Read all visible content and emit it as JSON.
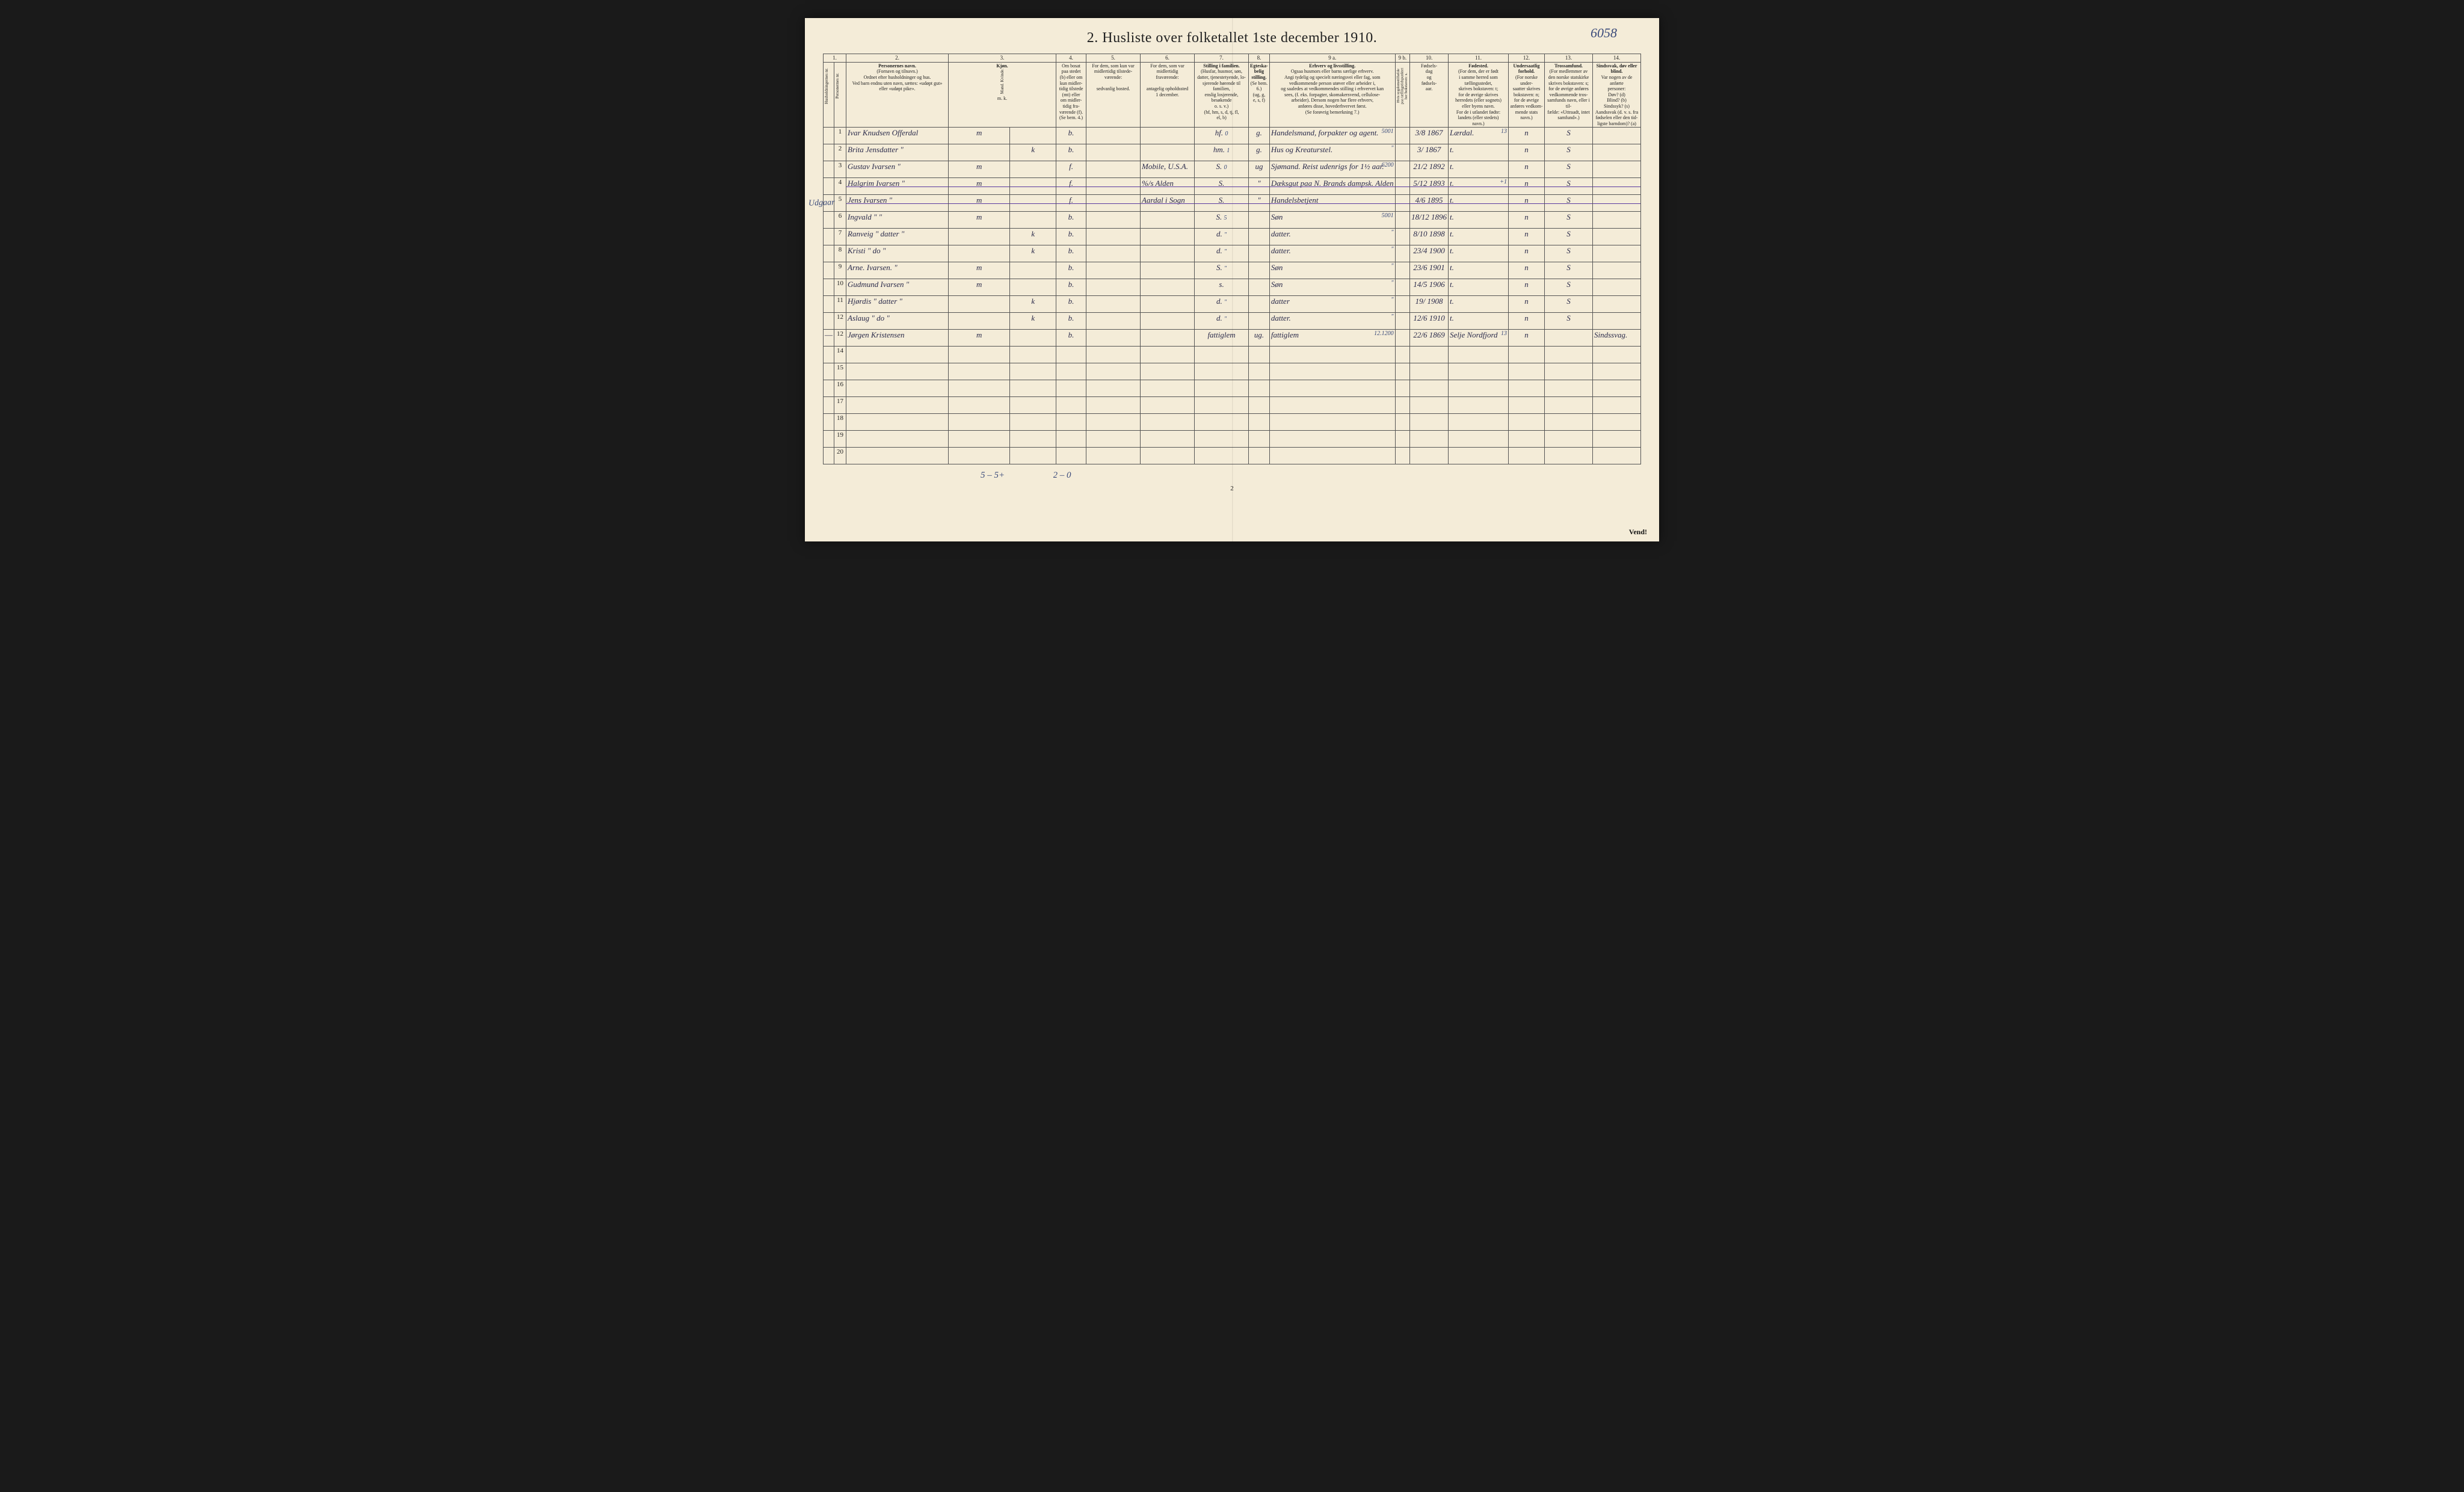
{
  "ref_number": "6058",
  "title": "2.  Husliste over folketallet 1ste december 1910.",
  "margin_note": "Udgaar",
  "page_number": "2",
  "vend": "Vend!",
  "footer": {
    "left_tally": "5 – 5+",
    "right_tally": "2 – 0"
  },
  "colnums": [
    "1.",
    "2.",
    "3.",
    "4.",
    "5.",
    "6.",
    "7.",
    "8.",
    "9 a.",
    "9 b.",
    "10.",
    "11.",
    "12.",
    "13.",
    "14."
  ],
  "headers": {
    "h1a": "Husholdningernes nr.",
    "h1b": "Personernes nr.",
    "h2_title": "Personernes navn.",
    "h2_sub": "(Fornavn og tilnavn.)\nOrdnet efter husholdninger og hus.\nVed barn endnu uten navn, sættes: «udøpt gut»\neller «udøpt pike».",
    "h3_title": "Kjøn.",
    "h3_sub": "Mand.  Kvinde.",
    "h3_mk": "m.    k.",
    "h4": "Om bosat\npaa stedet\n(b) eller om\nkun midler-\ntidig tilstede\n(mt) eller\nom midler-\ntidig fra-\nværende (f).\n(Se bem. 4.)",
    "h5": "For dem, som kun var\nmidlertidig tilstede-\nværende:\n\nsedvanlig bosted.",
    "h6": "For dem, som var\nmidlertidig\nfraværende:\n\nantagelig opholdssted\n1 december.",
    "h7_title": "Stilling i familien.",
    "h7_sub": "(Husfar, husmor, søn,\ndatter, tjenestetyende, lo-\nsjerende hørende til familien,\nenslig losjerende, besøkende\no. s. v.)\n(hf, hm, s, d, tj, fl,\nel, b)",
    "h8_title": "Egteska-\nbelig\nstilling.",
    "h8_sub": "(Se bem. 6.)\n(ug, g,\ne, s, f)",
    "h9a_title": "Erhverv og livsstilling.",
    "h9a_sub": "Ogsaa husmors eller barns særlige erhverv.\nAngi tydelig og specielt næringsvei eller fag, som\nvedkommende person utøver eller arbeider i,\nog saaledes at vedkommendes stilling i erhvervet kan\nsees, (f. eks. forpagter, skomakersvend, cellulose-\narbeider). Dersom nogen har flere erhverv,\nanføres disse, hovederhvervet først.\n(Se forøvrig bemerkning 7.)",
    "h9b": "Hvis sygdomstilfælde\npaa tællingstidspunktet\nher bokstaven: s.",
    "h10": "Fødsels-\ndag\nog\nfødsels-\naar.",
    "h11_title": "Fødested.",
    "h11_sub": "(For dem, der er født\ni samme herred som\ntællingsstedet,\nskrives bokstaven: t;\nfor de øvrige skrives\nherredets (eller sognets)\neller byens navn.\nFor de i utlandet fødte:\nlandets (eller stedets)\nnavn.)",
    "h12_title": "Undersaatlig\nforhold.",
    "h12_sub": "(For norske under-\nsaatter skrives\nbokstaven: n;\nfor de øvrige\nanføres vedkom-\nmende stats navn.)",
    "h13_title": "Trossamfund.",
    "h13_sub": "(For medlemmer av\nden norske statskirke\nskrives bokstaven: s;\nfor de øvrige anføres\nvedkommende tros-\nsamfunds navn, eller i til-\nfælde: «Uttraadt, intet\nsamfund».)",
    "h14_title": "Sindssvak, døv\neller blind.",
    "h14_sub": "Var nogen av de anførte\npersoner:\nDøv?     (d)\nBlind?    (b)\nSindssyk?  (s)\nAandssvak (d. v. s. fra\nfødselen eller den tid-\nligste barndom)?  (a)"
  },
  "rows": [
    {
      "n": "1",
      "name": "Ivar Knudsen Offerdal",
      "m": "m",
      "k": "",
      "bosat": "b.",
      "tilst": "",
      "frav": "",
      "fam": "hf.",
      "famnote": "0",
      "egte": "g.",
      "erhverv": "Handelsmand, forpakter og agent.",
      "erhnote": "5001",
      "fb": "3/8 1867",
      "fodested": "Lærdal.",
      "fonote": "13",
      "under": "n",
      "tros": "S",
      "sind": ""
    },
    {
      "n": "2",
      "name": "Brita Jensdatter   \"",
      "m": "",
      "k": "k",
      "bosat": "b.",
      "tilst": "",
      "frav": "",
      "fam": "hm.",
      "famnote": "1",
      "egte": "g.",
      "erhverv": "Hus og Kreaturstel.",
      "erhnote": "\"",
      "fb": "3/ 1867",
      "fodested": "t.",
      "fonote": "",
      "under": "n",
      "tros": "S",
      "sind": ""
    },
    {
      "n": "3",
      "name": "Gustav Ivarsen    \"",
      "m": "m",
      "k": "",
      "bosat": "f.",
      "tilst": "",
      "frav": "Mobile, U.S.A.",
      "fam": "S.",
      "famnote": "0",
      "egte": "ug",
      "erhverv": "Sjømand. Reist udenrigs for 1½ aar.",
      "erhnote": "6200",
      "fb": "21/2 1892",
      "fodested": "t.",
      "fonote": "",
      "under": "n",
      "tros": "S",
      "sind": ""
    },
    {
      "n": "4",
      "name": "Halgrim Ivarsen   \"",
      "m": "m",
      "k": "",
      "bosat": "f.",
      "tilst": "",
      "frav": "%/s Alden",
      "fam": "S.",
      "famnote": "",
      "egte": "\"",
      "erhverv": "Dæksgut paa N. Brands dampsk. Alden",
      "erhnote": "",
      "fb": "5/12 1893",
      "fodested": "t.",
      "fonote": "+1",
      "under": "n",
      "tros": "S",
      "sind": "",
      "struck": true
    },
    {
      "n": "5",
      "name": "Jens Ivarsen      \"",
      "m": "m",
      "k": "",
      "bosat": "f.",
      "tilst": "",
      "frav": "Aardal i Sogn",
      "fam": "S.",
      "famnote": "",
      "egte": "\"",
      "erhverv": "Handelsbetjent",
      "erhnote": "",
      "fb": "4/6 1895",
      "fodested": "t.",
      "fonote": "",
      "under": "n",
      "tros": "S",
      "sind": "",
      "struck": true
    },
    {
      "n": "6",
      "name": "Ingvald   \"       \"",
      "m": "m",
      "k": "",
      "bosat": "b.",
      "tilst": "",
      "frav": "",
      "fam": "S.",
      "famnote": "5",
      "egte": "",
      "erhverv": "Søn",
      "erhnote": "5001",
      "fb": "18/12 1896",
      "fodested": "t.",
      "fonote": "",
      "under": "n",
      "tros": "S",
      "sind": ""
    },
    {
      "n": "7",
      "name": "Ranveig   \"  datter \"",
      "m": "",
      "k": "k",
      "bosat": "b.",
      "tilst": "",
      "frav": "",
      "fam": "d.",
      "famnote": "\"",
      "egte": "",
      "erhverv": "datter.",
      "erhnote": "\"",
      "fb": "8/10 1898",
      "fodested": "t.",
      "fonote": "",
      "under": "n",
      "tros": "S",
      "sind": ""
    },
    {
      "n": "8",
      "name": "Kristi    \"   do   \"",
      "m": "",
      "k": "k",
      "bosat": "b.",
      "tilst": "",
      "frav": "",
      "fam": "d.",
      "famnote": "\"",
      "egte": "",
      "erhverv": "datter.",
      "erhnote": "\"",
      "fb": "23/4 1900",
      "fodested": "t.",
      "fonote": "",
      "under": "n",
      "tros": "S",
      "sind": ""
    },
    {
      "n": "9",
      "name": "Arne.  Ivarsen.   \"",
      "m": "m",
      "k": "",
      "bosat": "b.",
      "tilst": "",
      "frav": "",
      "fam": "S.",
      "famnote": "\"",
      "egte": "",
      "erhverv": "Søn",
      "erhnote": "\"",
      "fb": "23/6 1901",
      "fodested": "t.",
      "fonote": "",
      "under": "n",
      "tros": "S",
      "sind": ""
    },
    {
      "n": "10",
      "name": "Gudmund Ivarsen   \"",
      "m": "m",
      "k": "",
      "bosat": "b.",
      "tilst": "",
      "frav": "",
      "fam": "s.",
      "famnote": "",
      "egte": "",
      "erhverv": "Søn",
      "erhnote": "\"",
      "fb": "14/5 1906",
      "fodested": "t.",
      "fonote": "",
      "under": "n",
      "tros": "S",
      "sind": ""
    },
    {
      "n": "11",
      "name": "Hjørdis   \"  datter \"",
      "m": "",
      "k": "k",
      "bosat": "b.",
      "tilst": "",
      "frav": "",
      "fam": "d.",
      "famnote": "\"",
      "egte": "",
      "erhverv": "datter",
      "erhnote": "\"",
      "fb": "19/ 1908",
      "fodested": "t.",
      "fonote": "",
      "under": "n",
      "tros": "S",
      "sind": ""
    },
    {
      "n": "12",
      "name": "Aslaug    \"   do   \"",
      "m": "",
      "k": "k",
      "bosat": "b.",
      "tilst": "",
      "frav": "",
      "fam": "d.",
      "famnote": "\"",
      "egte": "",
      "erhverv": "datter.",
      "erhnote": "\"",
      "fb": "12/6 1910",
      "fodested": "t.",
      "fonote": "",
      "under": "n",
      "tros": "S",
      "sind": ""
    },
    {
      "n": "12",
      "name": "Jørgen Kristensen",
      "m": "m",
      "k": "",
      "bosat": "b.",
      "tilst": "",
      "frav": "",
      "fam": "fattiglem",
      "famnote": "",
      "egte": "ug.",
      "erhverv": "fattiglem",
      "erhnote": "12.1200",
      "fb": "22/6 1869",
      "fodested": "Selje Nordfjord",
      "fonote": "13",
      "under": "n",
      "tros": "",
      "sind": "Sindssvag.",
      "dash": true
    },
    {
      "n": "14"
    },
    {
      "n": "15"
    },
    {
      "n": "16"
    },
    {
      "n": "17"
    },
    {
      "n": "18"
    },
    {
      "n": "19"
    },
    {
      "n": "20"
    }
  ]
}
